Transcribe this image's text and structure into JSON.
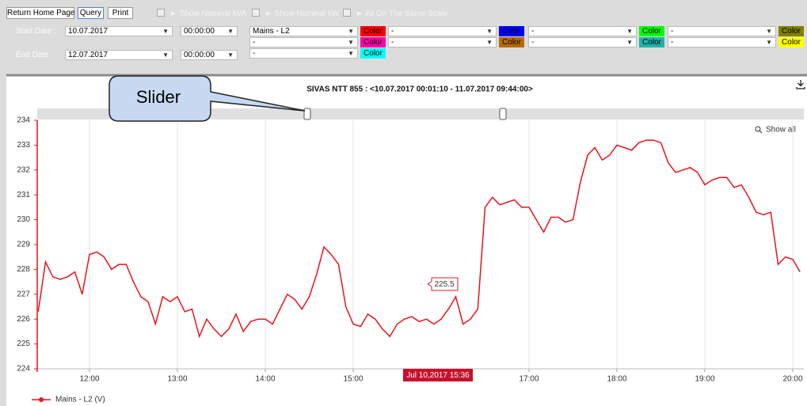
{
  "toolbar": {
    "buttons": [
      "Return Home Page",
      "Query",
      "Print"
    ],
    "options": [
      "► Show Nominal kVA",
      "► Show Nominal kW",
      "► All On The Same Scale"
    ],
    "start_date": {
      "label": "Start Date :",
      "date": "10.07.2017",
      "time": "00:00:00"
    },
    "end_date": {
      "label": "End Date :",
      "date": "12.07.2017",
      "time": "00:00:00"
    },
    "selectors": [
      {
        "value": "Mains - L2",
        "color_label": "Color",
        "color": "#ff0000"
      },
      {
        "value": "-",
        "color_label": "Color",
        "color": "#0000ff"
      },
      {
        "value": "-",
        "color_label": "Color",
        "color": "#00ff00"
      },
      {
        "value": "-",
        "color_label": "Color",
        "color": "#808000"
      },
      {
        "value": "-",
        "color_label": "Color",
        "color": "#ff00aa"
      },
      {
        "value": "-",
        "color_label": "Color",
        "color": "#b8690c"
      },
      {
        "value": "-",
        "color_label": "Color",
        "color": "#20b2aa"
      },
      {
        "value": "-",
        "color_label": "Color",
        "color": "#ffff00"
      },
      {
        "value": "-",
        "color_label": "Color",
        "color": "#00ffff"
      }
    ]
  },
  "annotations": {
    "callout": "Slider",
    "show_all": "Show all",
    "tooltip": "225.5",
    "crosshair_label": "Jul 10,2017 15:36"
  },
  "chart_data": {
    "type": "line",
    "title": "SIVAS NTT 855 : <10.07.2017 00:01:10 - 11.07.2017 09:44:00>",
    "x": [
      "11:25",
      "11:30",
      "11:35",
      "11:40",
      "11:45",
      "11:50",
      "11:55",
      "12:00",
      "12:05",
      "12:10",
      "12:15",
      "12:20",
      "12:25",
      "12:30",
      "12:35",
      "12:40",
      "12:45",
      "12:50",
      "12:55",
      "13:00",
      "13:05",
      "13:10",
      "13:15",
      "13:20",
      "13:25",
      "13:30",
      "13:35",
      "13:40",
      "13:45",
      "13:50",
      "13:55",
      "14:00",
      "14:05",
      "14:10",
      "14:15",
      "14:20",
      "14:25",
      "14:30",
      "14:35",
      "14:40",
      "14:45",
      "14:50",
      "14:55",
      "15:00",
      "15:05",
      "15:10",
      "15:15",
      "15:20",
      "15:25",
      "15:30",
      "15:35",
      "15:40",
      "15:45",
      "15:50",
      "15:55",
      "16:00",
      "16:05",
      "16:10",
      "16:15",
      "16:20",
      "16:25",
      "16:30",
      "16:35",
      "16:40",
      "16:45",
      "16:50",
      "16:55",
      "17:00",
      "17:05",
      "17:10",
      "17:15",
      "17:20",
      "17:25",
      "17:30",
      "17:35",
      "17:40",
      "17:45",
      "17:50",
      "17:55",
      "18:00",
      "18:05",
      "18:10",
      "18:15",
      "18:20",
      "18:25",
      "18:30",
      "18:35",
      "18:40",
      "18:45",
      "18:50",
      "18:55",
      "19:00",
      "19:05",
      "19:10",
      "19:15",
      "19:20",
      "19:25",
      "19:30",
      "19:35",
      "19:40",
      "19:45",
      "19:50",
      "19:55",
      "20:00",
      "20:05"
    ],
    "series": [
      {
        "name": "Mains - L2 (V)",
        "color": "#e8141c",
        "values": [
          226.3,
          228.3,
          227.7,
          227.6,
          227.7,
          227.9,
          227.0,
          228.6,
          228.7,
          228.5,
          228.0,
          228.2,
          228.2,
          227.5,
          226.9,
          226.7,
          225.8,
          226.9,
          226.7,
          226.9,
          226.3,
          226.4,
          225.3,
          226.0,
          225.6,
          225.3,
          225.6,
          226.2,
          225.5,
          225.9,
          226.0,
          226.0,
          225.8,
          226.4,
          227.0,
          226.8,
          226.4,
          226.9,
          227.8,
          228.9,
          228.6,
          228.2,
          226.5,
          225.8,
          225.7,
          226.2,
          226.0,
          225.6,
          225.3,
          225.8,
          226.0,
          226.1,
          225.9,
          226.0,
          225.8,
          226.0,
          226.4,
          226.9,
          225.8,
          226.0,
          226.4,
          230.5,
          230.9,
          230.6,
          230.7,
          230.8,
          230.5,
          230.5,
          230.0,
          229.5,
          230.1,
          230.1,
          229.9,
          230.0,
          231.5,
          232.6,
          232.9,
          232.4,
          232.6,
          233.0,
          232.9,
          232.8,
          233.1,
          233.2,
          233.2,
          233.1,
          232.3,
          231.9,
          232.0,
          232.1,
          231.9,
          231.4,
          231.6,
          231.7,
          231.7,
          231.3,
          231.4,
          230.9,
          230.3,
          230.2,
          230.3,
          228.2,
          228.5,
          228.4,
          227.9
        ]
      }
    ],
    "xlim": [
      "11:24",
      "20:08"
    ],
    "xticks": [
      "12:00",
      "13:00",
      "14:00",
      "15:00",
      "17:00",
      "18:00",
      "19:00",
      "20:00"
    ],
    "ylim": [
      224,
      234
    ],
    "yticks": [
      224,
      225,
      226,
      227,
      228,
      229,
      230,
      231,
      232,
      233,
      234
    ],
    "grid": true
  }
}
